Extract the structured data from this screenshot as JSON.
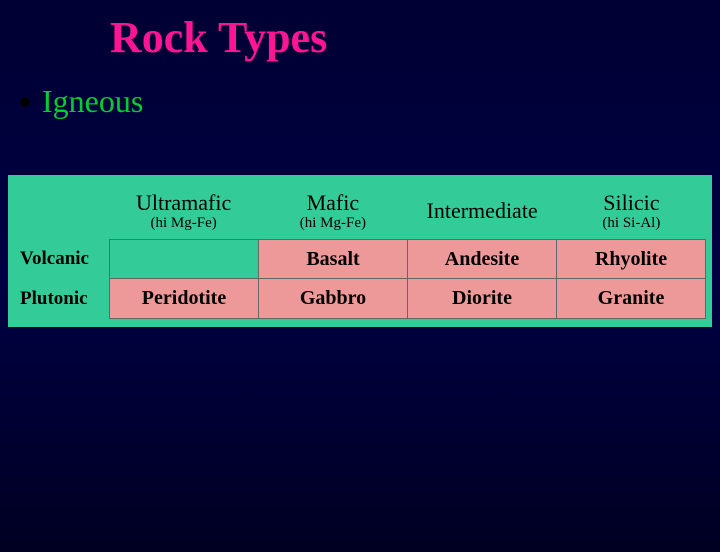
{
  "slide": {
    "title": "Rock Types",
    "bullet": "Igneous"
  },
  "table": {
    "type": "table",
    "background_color": "#33cc99",
    "cell_bg_color": "#ee9999",
    "cell_empty_bg_color": "#33cc99",
    "border_color": "#666666",
    "text_color": "#000000",
    "header_fontsize": 22,
    "subheader_fontsize": 15,
    "rowlabel_fontsize": 19,
    "cell_fontsize": 20,
    "columns": [
      {
        "main": "Ultramafic",
        "sub": "(hi Mg-Fe)"
      },
      {
        "main": "Mafic",
        "sub": "(hi Mg-Fe)"
      },
      {
        "main": "Intermediate",
        "sub": ""
      },
      {
        "main": "Silicic",
        "sub": "(hi Si-Al)"
      }
    ],
    "rows": [
      {
        "label": "Volcanic",
        "cells": [
          "",
          "Basalt",
          "Andesite",
          "Rhyolite"
        ]
      },
      {
        "label": "Plutonic",
        "cells": [
          "Peridotite",
          "Gabbro",
          "Diorite",
          "Granite"
        ]
      }
    ]
  },
  "colors": {
    "title_color": "#ff1493",
    "bullet_text_color": "#00cc33",
    "bullet_color": "#000000",
    "background_gradient_top": "#000033",
    "background_gradient_bottom": "#000022"
  }
}
